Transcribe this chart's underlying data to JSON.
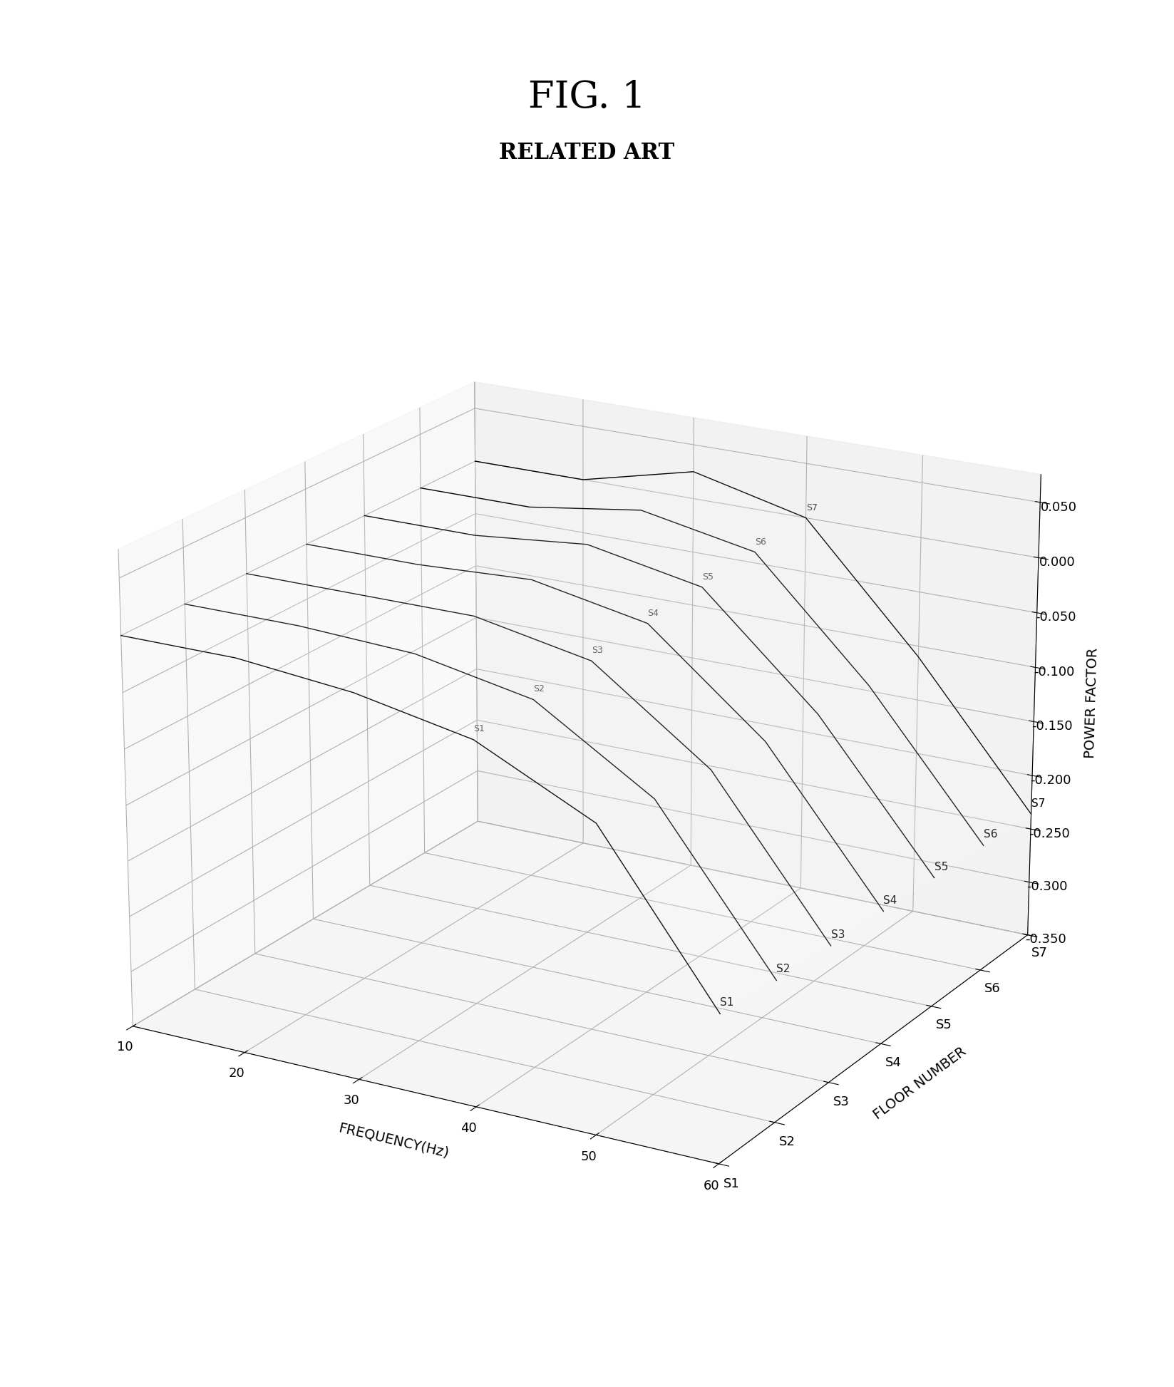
{
  "title_line1": "FIG. 1",
  "title_line2": "RELATED ART",
  "xlabel": "FREQUENCY(Hz)",
  "ylabel": "FLOOR NUMBER",
  "zlabel": "POWER FACTOR",
  "frequencies": [
    10,
    20,
    30,
    40,
    50,
    60
  ],
  "floor_labels": [
    "S1",
    "S2",
    "S3",
    "S4",
    "S5",
    "S6",
    "S7"
  ],
  "power_factors": {
    "S1": [
      0.0,
      0.0,
      -0.01,
      -0.03,
      -0.08,
      -0.22
    ],
    "S2": [
      0.0,
      0.0,
      -0.005,
      -0.025,
      -0.09,
      -0.225
    ],
    "S3": [
      0.0,
      0.0,
      0.0,
      -0.02,
      -0.095,
      -0.228
    ],
    "S4": [
      0.0,
      0.0,
      0.005,
      -0.015,
      -0.1,
      -0.23
    ],
    "S5": [
      0.0,
      0.0,
      0.01,
      -0.01,
      -0.105,
      -0.232
    ],
    "S6": [
      0.0,
      0.0,
      0.015,
      -0.005,
      -0.108,
      -0.234
    ],
    "S7": [
      0.0,
      0.0,
      0.025,
      0.0,
      -0.11,
      -0.236
    ]
  },
  "zlim": [
    -0.35,
    0.075
  ],
  "zticks": [
    0.05,
    0.0,
    -0.05,
    -0.1,
    -0.15,
    -0.2,
    -0.25,
    -0.3,
    -0.35
  ],
  "background_color": "#ffffff",
  "line_color": "#000000",
  "elev": 20,
  "azim": -60
}
